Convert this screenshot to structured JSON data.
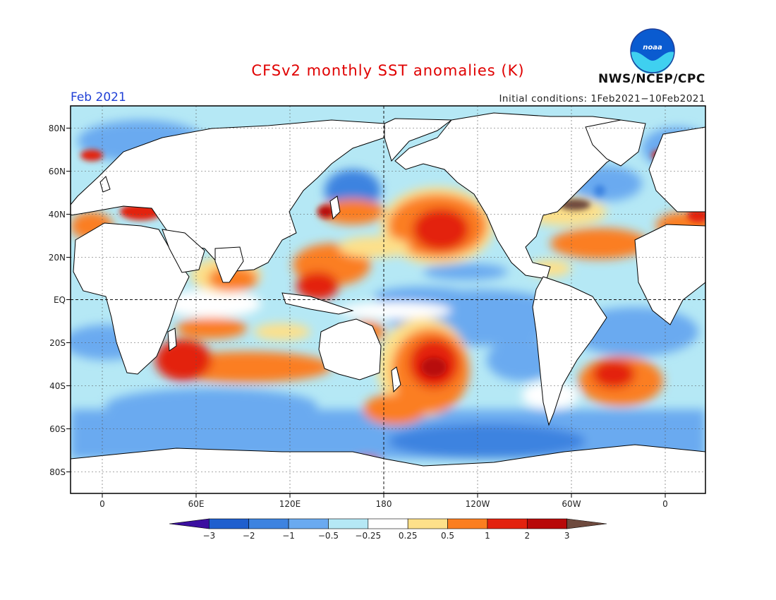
{
  "title": "CFSv2 monthly SST anomalies (K)",
  "valid_month": "Feb 2021",
  "initial_conditions": "Initial conditions: 1Feb2021−10Feb2021",
  "agency": "NWS/NCEP/CPC",
  "logo": {
    "text": "noaa",
    "icon": "noaa-logo"
  },
  "map": {
    "projection": "equirectangular",
    "lon_range": [
      -20,
      380
    ],
    "lat_range": [
      -90,
      90
    ],
    "grid": "dashed every 30 degrees",
    "reference_lines": [
      "equator",
      "180 meridian"
    ],
    "lat_ticks": [
      "80N",
      "60N",
      "40N",
      "20N",
      "EQ",
      "20S",
      "40S",
      "60S",
      "80S"
    ],
    "lon_ticks": [
      "0",
      "60E",
      "120E",
      "180",
      "120W",
      "60W",
      "0"
    ]
  },
  "colorbar": {
    "levels": [
      "−3",
      "−2",
      "−1",
      "−0.5",
      "−0.25",
      "0.25",
      "0.5",
      "1",
      "2",
      "3"
    ],
    "colors": [
      "#3b0fa0",
      "#1f5fce",
      "#3d83e0",
      "#6aaaf0",
      "#b5e8f5",
      "#ffffff",
      "#fde08a",
      "#fb7e20",
      "#e3220e",
      "#b80a0a",
      "#6e4a3e"
    ]
  }
}
